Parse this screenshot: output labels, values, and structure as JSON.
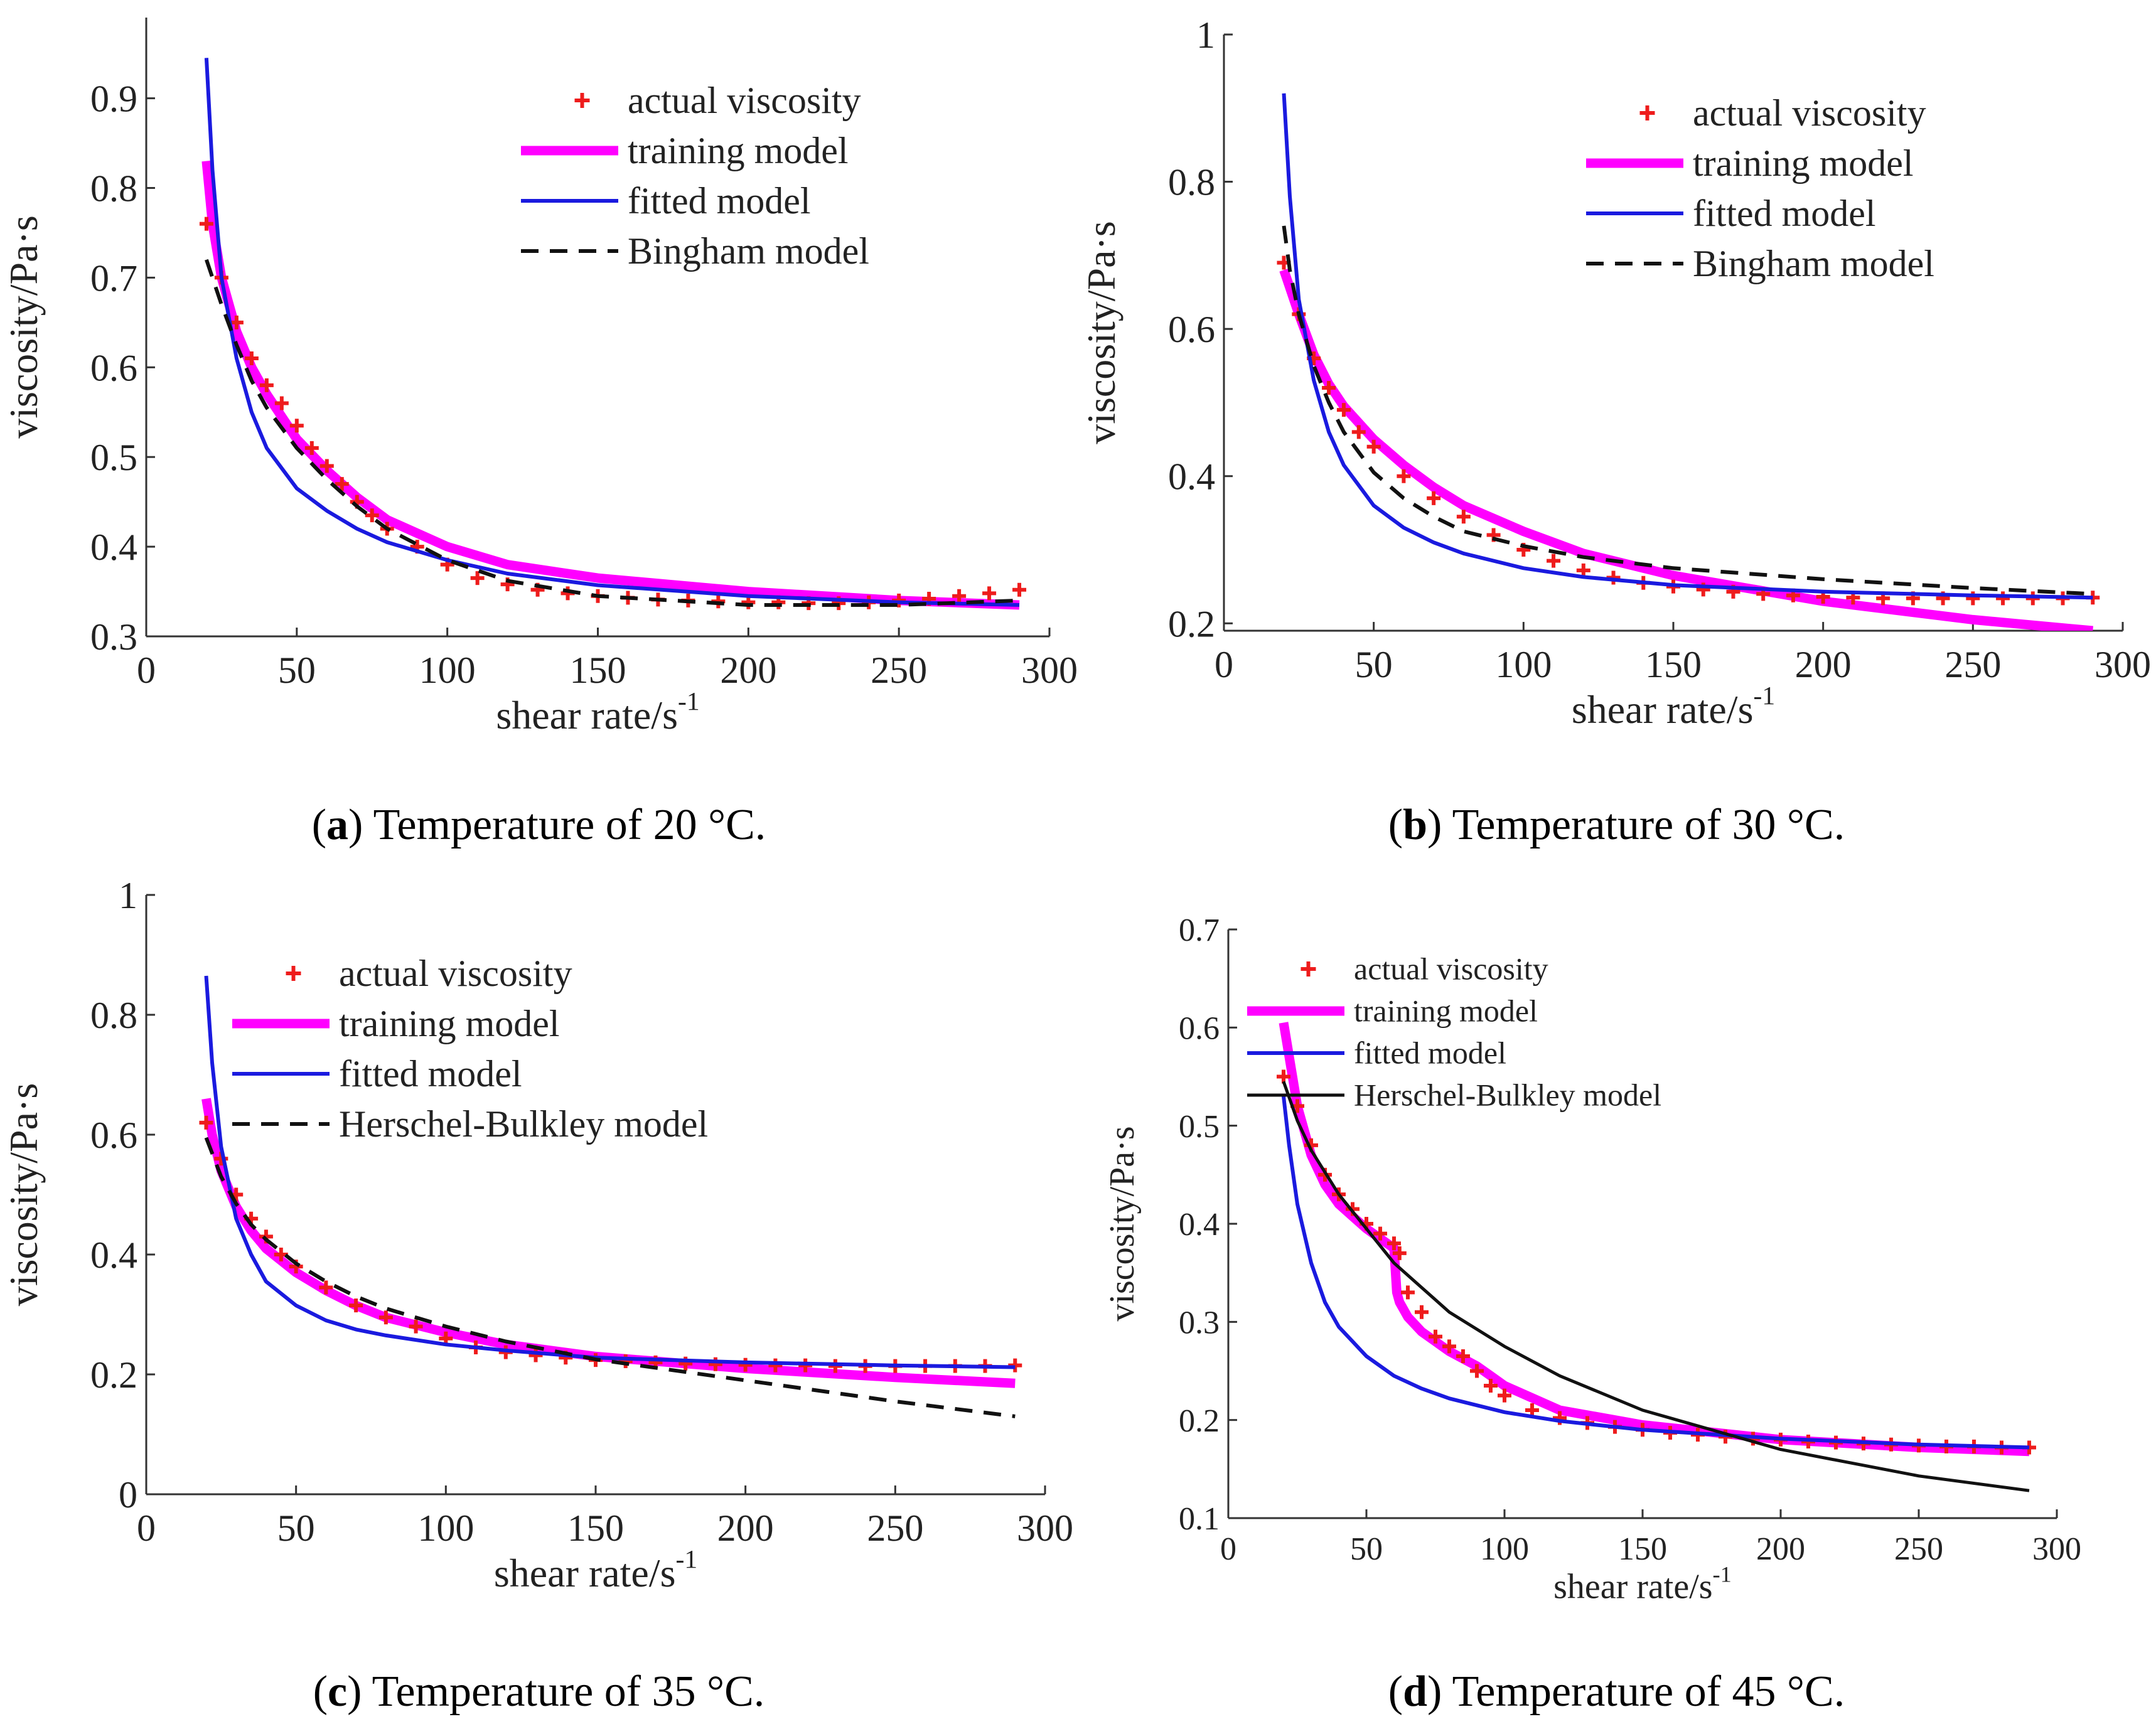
{
  "figure": {
    "captions": [
      {
        "letter": "a",
        "text": "Temperature of 20 °C."
      },
      {
        "letter": "b",
        "text": "Temperature of 30 °C."
      },
      {
        "letter": "c",
        "text": "Temperature of 35 °C."
      },
      {
        "letter": "d",
        "text": "Temperature of 45 °C."
      }
    ],
    "legend_labels": {
      "a": [
        "actual viscosity",
        "training model",
        "fitted model",
        "Bingham model"
      ],
      "b": [
        "actual viscosity",
        "training model",
        "fitted model",
        "Bingham model"
      ],
      "c": [
        "actual viscosity",
        "training model",
        "fitted model",
        "Herschel-Bulkley model"
      ],
      "d": [
        "actual viscosity",
        "training model",
        "fitted model",
        "Herschel-Bulkley model"
      ]
    }
  },
  "colors": {
    "actual": "#ee1c1c",
    "training": "#ff00ff",
    "fitted": "#1a1adf",
    "reference": "#111111"
  },
  "chart_data": [
    {
      "id": "a",
      "type": "line",
      "xlabel": "shear rate/s",
      "xlabel_sup": "-1",
      "ylabel": "viscosity/Pa·s",
      "xlim": [
        0,
        300
      ],
      "ylim": [
        0.3,
        0.99
      ],
      "xticks": [
        0,
        50,
        100,
        150,
        200,
        250,
        300
      ],
      "yticks": [
        0.3,
        0.4,
        0.5,
        0.6,
        0.7,
        0.8,
        0.9
      ],
      "ytick_labels": [
        "0.3",
        "0.4",
        "0.5",
        "0.6",
        "0.7",
        "0.8",
        "0.9"
      ],
      "legend_position": "top-right",
      "series": [
        {
          "name": "actual viscosity",
          "style": "markers",
          "x": [
            20,
            25,
            30,
            35,
            40,
            45,
            50,
            55,
            60,
            65,
            70,
            75,
            80,
            90,
            100,
            110,
            120,
            130,
            140,
            150,
            160,
            170,
            180,
            190,
            200,
            210,
            220,
            230,
            240,
            250,
            260,
            270,
            280,
            290
          ],
          "y": [
            0.76,
            0.7,
            0.65,
            0.61,
            0.58,
            0.56,
            0.535,
            0.51,
            0.49,
            0.47,
            0.45,
            0.435,
            0.42,
            0.4,
            0.38,
            0.365,
            0.358,
            0.352,
            0.348,
            0.345,
            0.343,
            0.341,
            0.34,
            0.339,
            0.338,
            0.338,
            0.337,
            0.337,
            0.338,
            0.34,
            0.342,
            0.345,
            0.348,
            0.352
          ]
        },
        {
          "name": "training model",
          "style": "thick",
          "x": [
            20,
            22,
            25,
            30,
            35,
            40,
            50,
            60,
            70,
            80,
            100,
            120,
            150,
            200,
            250,
            290
          ],
          "y": [
            0.83,
            0.76,
            0.7,
            0.64,
            0.6,
            0.57,
            0.52,
            0.485,
            0.455,
            0.43,
            0.4,
            0.38,
            0.365,
            0.35,
            0.34,
            0.335
          ]
        },
        {
          "name": "fitted model",
          "style": "solid",
          "x": [
            20,
            22,
            25,
            30,
            35,
            40,
            50,
            60,
            70,
            80,
            100,
            120,
            150,
            200,
            250,
            290
          ],
          "y": [
            0.945,
            0.82,
            0.7,
            0.61,
            0.55,
            0.51,
            0.465,
            0.44,
            0.42,
            0.405,
            0.385,
            0.37,
            0.357,
            0.345,
            0.338,
            0.335
          ]
        },
        {
          "name": "Bingham model",
          "style": "dashed",
          "x": [
            20,
            25,
            30,
            35,
            40,
            50,
            60,
            70,
            80,
            100,
            120,
            150,
            200,
            250,
            290
          ],
          "y": [
            0.72,
            0.67,
            0.625,
            0.585,
            0.555,
            0.51,
            0.475,
            0.445,
            0.42,
            0.385,
            0.362,
            0.345,
            0.335,
            0.335,
            0.34
          ]
        }
      ]
    },
    {
      "id": "b",
      "type": "line",
      "xlabel": "shear rate/s",
      "xlabel_sup": "-1",
      "ylabel": "viscosity/Pa·s",
      "xlim": [
        0,
        300
      ],
      "ylim": [
        0.19,
        1.0
      ],
      "xticks": [
        0,
        50,
        100,
        150,
        200,
        250,
        300
      ],
      "yticks": [
        0.2,
        0.4,
        0.6,
        0.8,
        1.0
      ],
      "ytick_labels": [
        "0.2",
        "0.4",
        "0.6",
        "0.8",
        "1"
      ],
      "legend_position": "top-right",
      "series": [
        {
          "name": "actual viscosity",
          "style": "markers",
          "x": [
            20,
            25,
            30,
            35,
            40,
            45,
            50,
            60,
            70,
            80,
            90,
            100,
            110,
            120,
            130,
            140,
            150,
            160,
            170,
            180,
            190,
            200,
            210,
            220,
            230,
            240,
            250,
            260,
            270,
            280,
            290
          ],
          "y": [
            0.69,
            0.62,
            0.56,
            0.52,
            0.49,
            0.46,
            0.44,
            0.4,
            0.37,
            0.345,
            0.32,
            0.3,
            0.285,
            0.272,
            0.262,
            0.255,
            0.25,
            0.246,
            0.243,
            0.24,
            0.238,
            0.236,
            0.235,
            0.234,
            0.234,
            0.234,
            0.234,
            0.234,
            0.234,
            0.234,
            0.235
          ]
        },
        {
          "name": "training model",
          "style": "thick",
          "x": [
            20,
            25,
            30,
            35,
            40,
            50,
            60,
            70,
            80,
            100,
            120,
            150,
            200,
            250,
            290
          ],
          "y": [
            0.68,
            0.62,
            0.565,
            0.525,
            0.495,
            0.45,
            0.415,
            0.385,
            0.36,
            0.325,
            0.295,
            0.265,
            0.23,
            0.205,
            0.19
          ]
        },
        {
          "name": "fitted model",
          "style": "solid",
          "x": [
            20,
            22,
            25,
            30,
            35,
            40,
            50,
            60,
            70,
            80,
            100,
            120,
            150,
            200,
            250,
            290
          ],
          "y": [
            0.92,
            0.78,
            0.64,
            0.53,
            0.46,
            0.415,
            0.36,
            0.33,
            0.31,
            0.295,
            0.275,
            0.263,
            0.252,
            0.243,
            0.238,
            0.235
          ]
        },
        {
          "name": "Bingham model",
          "style": "dashed",
          "x": [
            20,
            22,
            25,
            30,
            35,
            40,
            50,
            60,
            70,
            80,
            100,
            120,
            150,
            200,
            250,
            290
          ],
          "y": [
            0.74,
            0.68,
            0.62,
            0.55,
            0.5,
            0.46,
            0.405,
            0.37,
            0.345,
            0.325,
            0.305,
            0.29,
            0.275,
            0.26,
            0.248,
            0.24
          ]
        }
      ]
    },
    {
      "id": "c",
      "type": "line",
      "xlabel": "shear rate/s",
      "xlabel_sup": "-1",
      "ylabel": "viscosity/Pa·s",
      "xlim": [
        0,
        300
      ],
      "ylim": [
        0,
        1.0
      ],
      "xticks": [
        0,
        50,
        100,
        150,
        200,
        250,
        300
      ],
      "yticks": [
        0,
        0.2,
        0.4,
        0.6,
        0.8,
        1.0
      ],
      "ytick_labels": [
        "0",
        "0.2",
        "0.4",
        "0.6",
        "0.8",
        "1"
      ],
      "legend_position": "top-right",
      "series": [
        {
          "name": "actual viscosity",
          "style": "markers",
          "x": [
            20,
            25,
            30,
            35,
            40,
            45,
            50,
            60,
            70,
            80,
            90,
            100,
            110,
            120,
            130,
            140,
            150,
            160,
            170,
            180,
            190,
            200,
            210,
            220,
            230,
            240,
            250,
            260,
            270,
            280,
            290
          ],
          "y": [
            0.62,
            0.56,
            0.5,
            0.46,
            0.43,
            0.4,
            0.38,
            0.345,
            0.315,
            0.295,
            0.28,
            0.26,
            0.245,
            0.237,
            0.232,
            0.228,
            0.224,
            0.222,
            0.22,
            0.218,
            0.217,
            0.216,
            0.215,
            0.215,
            0.214,
            0.214,
            0.214,
            0.214,
            0.214,
            0.214,
            0.215
          ]
        },
        {
          "name": "training model",
          "style": "thick",
          "x": [
            20,
            22,
            25,
            30,
            35,
            40,
            50,
            60,
            70,
            80,
            100,
            120,
            150,
            200,
            250,
            290
          ],
          "y": [
            0.66,
            0.6,
            0.54,
            0.48,
            0.44,
            0.41,
            0.37,
            0.34,
            0.315,
            0.295,
            0.27,
            0.25,
            0.23,
            0.21,
            0.195,
            0.185
          ]
        },
        {
          "name": "fitted model",
          "style": "solid",
          "x": [
            20,
            22,
            25,
            30,
            35,
            40,
            50,
            60,
            70,
            80,
            100,
            120,
            150,
            200,
            250,
            290
          ],
          "y": [
            0.865,
            0.72,
            0.58,
            0.46,
            0.4,
            0.355,
            0.315,
            0.29,
            0.275,
            0.265,
            0.25,
            0.24,
            0.228,
            0.22,
            0.215,
            0.212
          ]
        },
        {
          "name": "Herschel-Bulkley model",
          "style": "dashed",
          "x": [
            20,
            25,
            30,
            35,
            40,
            50,
            60,
            70,
            80,
            100,
            120,
            150,
            200,
            250,
            290
          ],
          "y": [
            0.595,
            0.53,
            0.485,
            0.45,
            0.425,
            0.385,
            0.355,
            0.33,
            0.31,
            0.28,
            0.255,
            0.225,
            0.19,
            0.155,
            0.13
          ]
        }
      ]
    },
    {
      "id": "d",
      "type": "line",
      "xlabel": "shear rate/s",
      "xlabel_sup": "-1",
      "ylabel": "viscosity/Pa·s",
      "xlim": [
        0,
        300
      ],
      "ylim": [
        0.1,
        0.7
      ],
      "xticks": [
        0,
        50,
        100,
        150,
        200,
        250,
        300
      ],
      "yticks": [
        0.1,
        0.2,
        0.3,
        0.4,
        0.5,
        0.6,
        0.7
      ],
      "ytick_labels": [
        "0.1",
        "0.2",
        "0.3",
        "0.4",
        "0.5",
        "0.6",
        "0.7"
      ],
      "legend_position": "top-center",
      "series": [
        {
          "name": "actual viscosity",
          "style": "markers",
          "x": [
            20,
            25,
            30,
            35,
            40,
            45,
            50,
            55,
            60,
            62,
            65,
            70,
            75,
            80,
            85,
            90,
            95,
            100,
            110,
            120,
            130,
            140,
            150,
            160,
            170,
            180,
            190,
            200,
            210,
            220,
            230,
            240,
            250,
            260,
            270,
            280,
            290
          ],
          "y": [
            0.55,
            0.52,
            0.48,
            0.45,
            0.43,
            0.415,
            0.4,
            0.39,
            0.38,
            0.37,
            0.33,
            0.31,
            0.285,
            0.275,
            0.265,
            0.25,
            0.235,
            0.225,
            0.21,
            0.202,
            0.197,
            0.193,
            0.19,
            0.187,
            0.185,
            0.183,
            0.181,
            0.18,
            0.178,
            0.177,
            0.176,
            0.175,
            0.174,
            0.173,
            0.173,
            0.172,
            0.172
          ]
        },
        {
          "name": "training model",
          "style": "thick",
          "x": [
            20,
            25,
            30,
            35,
            40,
            50,
            60,
            61,
            62,
            65,
            70,
            80,
            90,
            95,
            100,
            120,
            150,
            200,
            250,
            290
          ],
          "y": [
            0.605,
            0.52,
            0.47,
            0.44,
            0.42,
            0.395,
            0.375,
            0.33,
            0.32,
            0.305,
            0.29,
            0.27,
            0.255,
            0.245,
            0.235,
            0.21,
            0.195,
            0.18,
            0.172,
            0.168
          ]
        },
        {
          "name": "fitted model",
          "style": "solid",
          "x": [
            20,
            22,
            25,
            30,
            35,
            40,
            50,
            60,
            70,
            80,
            100,
            120,
            150,
            200,
            250,
            290
          ],
          "y": [
            0.53,
            0.48,
            0.42,
            0.36,
            0.32,
            0.295,
            0.265,
            0.245,
            0.232,
            0.222,
            0.208,
            0.199,
            0.19,
            0.181,
            0.175,
            0.172
          ]
        },
        {
          "name": "Herschel-Bulkley model",
          "style": "solid",
          "x": [
            20,
            25,
            30,
            40,
            50,
            60,
            70,
            80,
            100,
            120,
            150,
            200,
            250,
            290
          ],
          "y": [
            0.545,
            0.505,
            0.475,
            0.43,
            0.395,
            0.36,
            0.335,
            0.31,
            0.275,
            0.245,
            0.21,
            0.17,
            0.143,
            0.128
          ]
        }
      ]
    }
  ]
}
